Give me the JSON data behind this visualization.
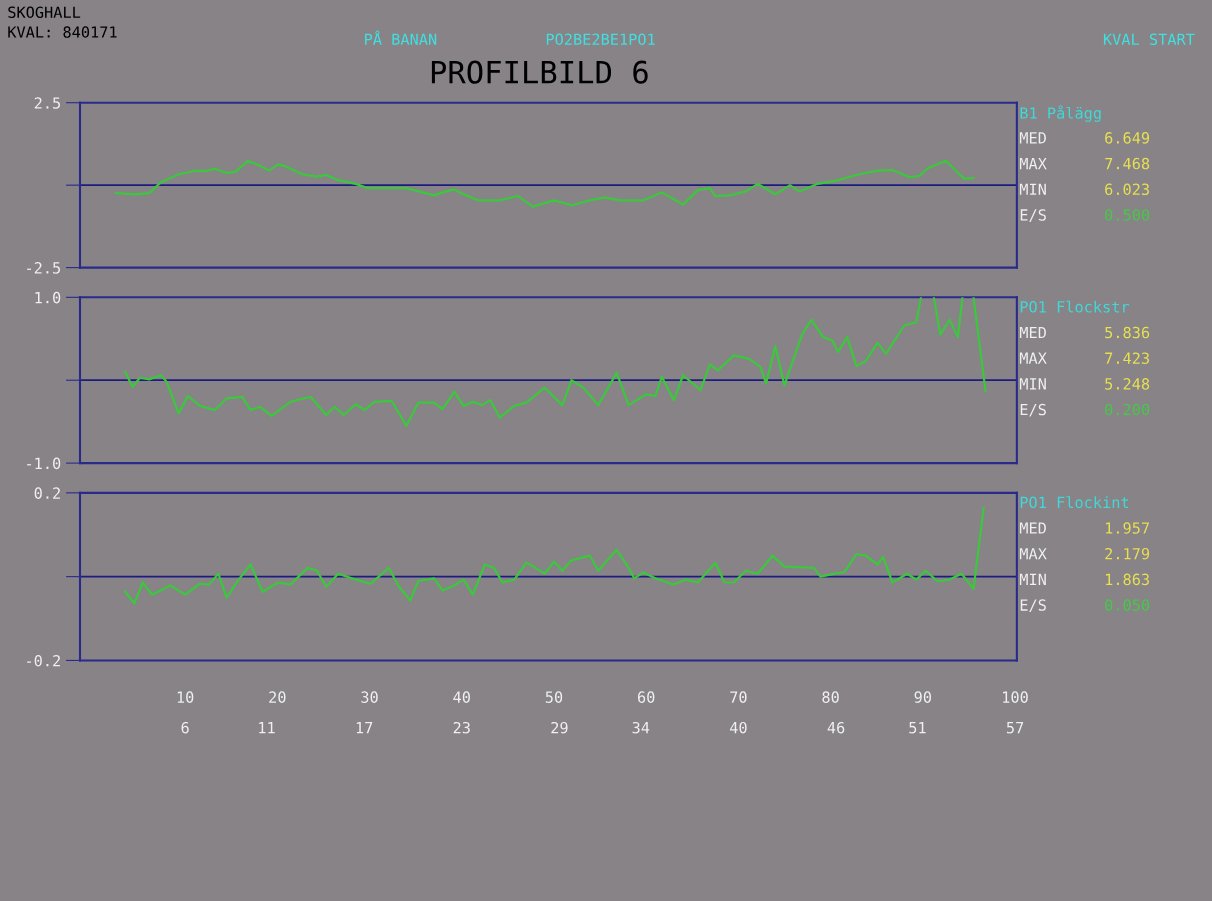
{
  "chart_data": [
    {
      "type": "line",
      "title": "PROFILBILD 6",
      "annotations": [
        "SKOGHALL",
        "KVAL: 840171",
        "PÅ BANAN",
        "PO2BE2BE1PO1",
        "KVAL START",
        "B1 Pålägg",
        "MED",
        "6.649",
        "MAX",
        "7.468",
        "MIN",
        "6.023",
        "E/S",
        "0.500"
      ],
      "xlim": [
        -1.4,
        100.2
      ],
      "ylim": [
        -2.5,
        2.5
      ],
      "yticks": [
        -2.5,
        {
          "value": 0,
          "label": null
        },
        2.5
      ],
      "tick_labels": "y",
      "grid": false,
      "ref_lines": [
        {
          "axis": "y",
          "value": 0,
          "color": "#1c1c80"
        }
      ],
      "series": [
        {
          "color": "#3cc83c",
          "x": [
            2.5,
            4.5,
            6.1,
            7.4,
            9.3,
            11.0,
            12.3,
            13.2,
            14.5,
            15.5,
            16.8,
            18.1,
            19.1,
            20.1,
            21.0,
            22.7,
            24.3,
            25.3,
            26.6,
            28.5,
            29.8,
            34.0,
            37.0,
            38.3,
            39.2,
            40.2,
            41.8,
            44.1,
            46.1,
            47.7,
            50.0,
            51.9,
            53.9,
            55.5,
            57.1,
            59.7,
            61.7,
            63.0,
            64.0,
            65.6,
            66.9,
            67.5,
            69.1,
            70.8,
            72.1,
            74.0,
            75.6,
            76.6,
            78.6,
            80.5,
            83.1,
            85.1,
            86.7,
            88.6,
            89.6,
            90.6,
            92.5,
            93.5,
            94.5,
            95.5
          ],
          "values": [
            -0.24,
            -0.28,
            -0.24,
            0.09,
            0.33,
            0.43,
            0.43,
            0.5,
            0.37,
            0.41,
            0.74,
            0.59,
            0.44,
            0.63,
            0.56,
            0.33,
            0.26,
            0.31,
            0.15,
            0.04,
            -0.09,
            -0.09,
            -0.31,
            -0.19,
            -0.13,
            -0.28,
            -0.46,
            -0.46,
            -0.33,
            -0.65,
            -0.46,
            -0.61,
            -0.46,
            -0.37,
            -0.46,
            -0.46,
            -0.22,
            -0.43,
            -0.59,
            -0.15,
            -0.09,
            -0.33,
            -0.31,
            -0.19,
            0.04,
            -0.28,
            0.0,
            -0.19,
            0.04,
            0.13,
            0.33,
            0.44,
            0.46,
            0.24,
            0.28,
            0.52,
            0.74,
            0.46,
            0.19,
            0.22
          ]
        }
      ]
    },
    {
      "type": "line",
      "annotations": [
        "PO1 Flockstr",
        "MED",
        "5.836",
        "MAX",
        "7.423",
        "MIN",
        "5.248",
        "E/S",
        "0.200"
      ],
      "xlim": [
        -1.4,
        100.2
      ],
      "ylim": [
        -1.0,
        1.0
      ],
      "yticks": [
        {
          "value": -1.0,
          "label": "-1.0"
        },
        {
          "value": 0,
          "label": null
        },
        {
          "value": 1.0,
          "label": "1.0"
        }
      ],
      "tick_labels": "y",
      "grid": false,
      "ref_lines": [
        {
          "axis": "y",
          "value": 0,
          "color": "#1c1c80"
        }
      ],
      "series": [
        {
          "color": "#3cc83c",
          "x": [
            3.5,
            4.3,
            5.1,
            6.1,
            7.4,
            8.0,
            9.3,
            10.3,
            11.6,
            13.2,
            14.5,
            16.2,
            17.1,
            18.1,
            19.4,
            21.4,
            23.6,
            25.3,
            26.2,
            27.2,
            28.5,
            29.5,
            30.5,
            32.4,
            34.0,
            35.3,
            37.0,
            37.9,
            39.2,
            40.2,
            41.2,
            42.2,
            43.1,
            44.1,
            45.7,
            47.0,
            49.0,
            50.9,
            51.9,
            53.2,
            54.8,
            56.8,
            58.1,
            60.0,
            61.0,
            61.7,
            63.0,
            64.0,
            65.9,
            66.9,
            67.8,
            69.5,
            71.1,
            72.4,
            73.0,
            74.0,
            75.0,
            76.9,
            77.9,
            79.2,
            80.2,
            80.8,
            81.8,
            82.8,
            83.8,
            85.1,
            86.0,
            88.0,
            89.3,
            89.8,
            90.2,
            91.2,
            91.9,
            92.9,
            93.8,
            94.3,
            94.8,
            95.5,
            96.8
          ],
          "values": [
            0.1,
            -0.08,
            0.03,
            0.01,
            0.06,
            -0.02,
            -0.4,
            -0.19,
            -0.31,
            -0.36,
            -0.22,
            -0.2,
            -0.36,
            -0.32,
            -0.43,
            -0.26,
            -0.2,
            -0.42,
            -0.32,
            -0.42,
            -0.29,
            -0.36,
            -0.26,
            -0.25,
            -0.55,
            -0.27,
            -0.27,
            -0.35,
            -0.14,
            -0.31,
            -0.26,
            -0.3,
            -0.24,
            -0.45,
            -0.31,
            -0.27,
            -0.09,
            -0.3,
            0.0,
            -0.09,
            -0.3,
            0.09,
            -0.3,
            -0.17,
            -0.19,
            0.04,
            -0.24,
            0.06,
            -0.12,
            0.19,
            0.12,
            0.3,
            0.26,
            0.16,
            -0.04,
            0.41,
            -0.06,
            0.55,
            0.73,
            0.52,
            0.48,
            0.34,
            0.52,
            0.17,
            0.23,
            0.45,
            0.32,
            0.66,
            0.7,
            1.0,
            null,
            1.0,
            0.55,
            0.73,
            0.52,
            1.0,
            null,
            1.0,
            -0.13
          ]
        }
      ]
    },
    {
      "type": "line",
      "annotations": [
        "PO1 Flockint",
        "MED",
        "1.957",
        "MAX",
        "2.179",
        "MIN",
        "1.863",
        "E/S",
        "0.050"
      ],
      "xlim": [
        -1.4,
        100.2
      ],
      "xticks": [
        10,
        20,
        30,
        40,
        50,
        60,
        70,
        80,
        90,
        100
      ],
      "x2lim": [
        -0.46,
        57.11
      ],
      "x2ticks": [
        6,
        11,
        17,
        23,
        29,
        34,
        40,
        46,
        51,
        57
      ],
      "ylim": [
        -0.2,
        0.2
      ],
      "yticks": [
        {
          "value": -0.2,
          "label": "-0.2"
        },
        {
          "value": 0,
          "label": null
        },
        {
          "value": 0.2,
          "label": "0.2"
        }
      ],
      "grid": false,
      "ref_lines": [
        {
          "axis": "y",
          "value": 0,
          "color": "#1c1c80"
        }
      ],
      "series": [
        {
          "color": "#3cc83c",
          "x": [
            3.5,
            4.5,
            5.4,
            6.4,
            8.4,
            10.0,
            11.6,
            12.6,
            13.6,
            14.5,
            15.8,
            17.1,
            18.4,
            20.1,
            21.4,
            23.3,
            24.3,
            25.3,
            26.6,
            28.5,
            30.1,
            32.1,
            33.1,
            34.4,
            35.3,
            37.0,
            37.9,
            39.2,
            40.2,
            41.2,
            42.5,
            43.5,
            44.4,
            45.7,
            47.0,
            48.0,
            49.0,
            50.0,
            50.9,
            51.9,
            53.9,
            54.8,
            56.8,
            58.1,
            58.7,
            59.7,
            61.0,
            63.0,
            64.3,
            65.6,
            67.5,
            68.5,
            69.5,
            70.8,
            72.1,
            73.7,
            75.0,
            78.2,
            78.9,
            80.5,
            81.5,
            82.8,
            83.8,
            85.1,
            85.7,
            86.7,
            88.3,
            89.3,
            90.3,
            91.6,
            92.9,
            94.2,
            95.5,
            96.6
          ],
          "values": [
            -0.036,
            -0.064,
            -0.014,
            -0.043,
            -0.021,
            -0.043,
            -0.017,
            -0.019,
            0.007,
            -0.05,
            -0.007,
            0.029,
            -0.036,
            -0.014,
            -0.019,
            0.021,
            0.014,
            -0.024,
            0.007,
            -0.007,
            -0.017,
            0.021,
            -0.021,
            -0.057,
            -0.01,
            -0.004,
            -0.033,
            -0.021,
            -0.007,
            -0.043,
            0.029,
            0.021,
            -0.014,
            -0.007,
            0.033,
            0.021,
            0.007,
            0.036,
            0.014,
            0.039,
            0.05,
            0.014,
            0.064,
            0.021,
            -0.004,
            0.01,
            -0.004,
            -0.019,
            -0.007,
            -0.014,
            0.033,
            -0.014,
            -0.014,
            0.014,
            0.007,
            0.05,
            0.024,
            0.021,
            0.0,
            0.007,
            0.011,
            0.054,
            0.05,
            0.029,
            0.047,
            -0.014,
            0.007,
            -0.007,
            0.014,
            -0.011,
            -0.007,
            0.007,
            -0.029,
            0.164
          ]
        }
      ]
    }
  ]
}
